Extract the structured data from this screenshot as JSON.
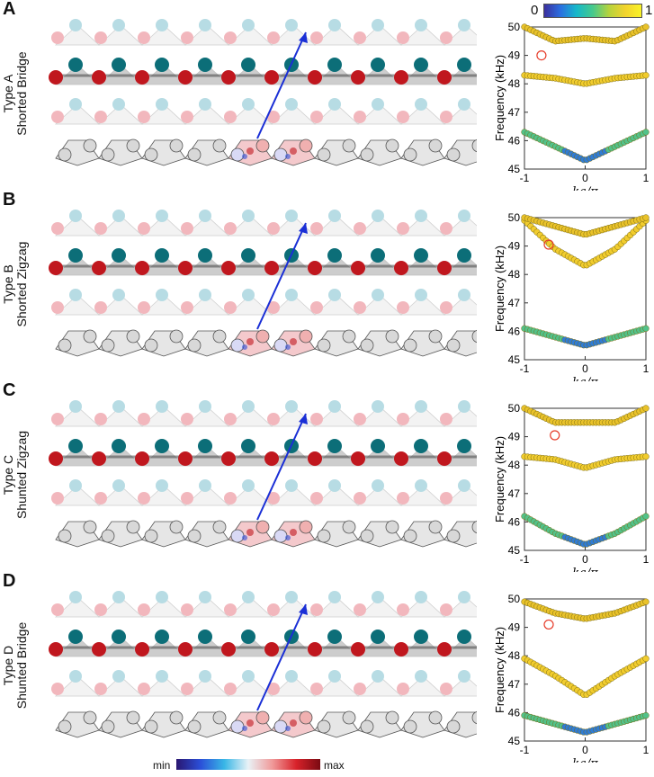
{
  "colorbar_top": {
    "min_label": "0",
    "max_label": "1"
  },
  "field_colorbar": {
    "min_label": "min",
    "max_label": "max"
  },
  "panels": [
    {
      "letter": "A",
      "type": "Type A",
      "name": "Shorted Bridge"
    },
    {
      "letter": "B",
      "type": "Type B",
      "name": "Shorted Zigzag"
    },
    {
      "letter": "C",
      "type": "Type C",
      "name": "Shunted Zigzag"
    },
    {
      "letter": "D",
      "type": "Type D",
      "name": "Shunted Bridge"
    }
  ],
  "colors": {
    "accent_red": "#c0171e",
    "accent_teal": "#0c6e78",
    "light_red": "#f2b7bd",
    "light_blue": "#b7dce4",
    "arrow": "#1a2fd6",
    "marker": "#e63c2a",
    "cell_fill": "#e6e6e6"
  },
  "chart_data": [
    {
      "type": "scatter",
      "panel": "A",
      "ylabel": "Frequency (kHz)",
      "xlabel": "ka/π",
      "xlim": [
        -1,
        1
      ],
      "ylim": [
        45,
        50
      ],
      "xticks": [
        -1,
        0,
        1
      ],
      "yticks": [
        45,
        46,
        47,
        48,
        49,
        50
      ],
      "series": [
        {
          "name": "edge",
          "points": [
            [
              -1,
              48.3
            ],
            [
              -0.5,
              48.2
            ],
            [
              0,
              48.0
            ],
            [
              0.5,
              48.2
            ],
            [
              1,
              48.3
            ]
          ]
        },
        {
          "name": "upper",
          "points": [
            [
              -1,
              50.0
            ],
            [
              -0.5,
              49.5
            ],
            [
              0,
              49.6
            ],
            [
              0.5,
              49.5
            ],
            [
              1,
              50.0
            ]
          ]
        },
        {
          "name": "lower",
          "points": [
            [
              -1,
              46.3
            ],
            [
              -0.5,
              45.8
            ],
            [
              0,
              45.3
            ],
            [
              0.5,
              45.8
            ],
            [
              1,
              46.3
            ]
          ]
        }
      ],
      "highlight": [
        -0.72,
        49.0
      ]
    },
    {
      "type": "scatter",
      "panel": "B",
      "ylabel": "Frequency (kHz)",
      "xlabel": "ka/π",
      "xlim": [
        -1,
        1
      ],
      "ylim": [
        45,
        50
      ],
      "xticks": [
        -1,
        0,
        1
      ],
      "yticks": [
        45,
        46,
        47,
        48,
        49,
        50
      ],
      "series": [
        {
          "name": "edge",
          "points": [
            [
              -1,
              49.9
            ],
            [
              -0.5,
              48.9
            ],
            [
              0,
              48.3
            ],
            [
              0.5,
              48.9
            ],
            [
              1,
              49.9
            ]
          ]
        },
        {
          "name": "upper",
          "points": [
            [
              -1,
              50.0
            ],
            [
              -0.5,
              49.7
            ],
            [
              0,
              49.4
            ],
            [
              0.5,
              49.7
            ],
            [
              1,
              50.0
            ]
          ]
        },
        {
          "name": "lower",
          "points": [
            [
              -1,
              46.1
            ],
            [
              -0.5,
              45.8
            ],
            [
              0,
              45.5
            ],
            [
              0.5,
              45.8
            ],
            [
              1,
              46.1
            ]
          ]
        }
      ],
      "highlight": [
        -0.6,
        49.05
      ]
    },
    {
      "type": "scatter",
      "panel": "C",
      "ylabel": "Frequency (kHz)",
      "xlabel": "ka/π",
      "xlim": [
        -1,
        1
      ],
      "ylim": [
        45,
        50
      ],
      "xticks": [
        -1,
        0,
        1
      ],
      "yticks": [
        45,
        46,
        47,
        48,
        49,
        50
      ],
      "series": [
        {
          "name": "edge",
          "points": [
            [
              -1,
              48.3
            ],
            [
              -0.5,
              48.2
            ],
            [
              0,
              47.9
            ],
            [
              0.5,
              48.2
            ],
            [
              1,
              48.3
            ]
          ]
        },
        {
          "name": "upper",
          "points": [
            [
              -1,
              50.0
            ],
            [
              -0.5,
              49.5
            ],
            [
              0,
              49.5
            ],
            [
              0.5,
              49.5
            ],
            [
              1,
              50.0
            ]
          ]
        },
        {
          "name": "lower",
          "points": [
            [
              -1,
              46.2
            ],
            [
              -0.5,
              45.6
            ],
            [
              0,
              45.2
            ],
            [
              0.5,
              45.6
            ],
            [
              1,
              46.2
            ]
          ]
        }
      ],
      "highlight": [
        -0.5,
        49.05
      ]
    },
    {
      "type": "scatter",
      "panel": "D",
      "ylabel": "Frequency (kHz)",
      "xlabel": "ka/π",
      "xlim": [
        -1,
        1
      ],
      "ylim": [
        45,
        50
      ],
      "xticks": [
        -1,
        0,
        1
      ],
      "yticks": [
        45,
        46,
        47,
        48,
        49,
        50
      ],
      "series": [
        {
          "name": "edge",
          "points": [
            [
              -1,
              47.9
            ],
            [
              -0.5,
              47.3
            ],
            [
              0,
              46.6
            ],
            [
              0.5,
              47.3
            ],
            [
              1,
              47.9
            ]
          ]
        },
        {
          "name": "upper",
          "points": [
            [
              -1,
              49.9
            ],
            [
              -0.5,
              49.5
            ],
            [
              0,
              49.3
            ],
            [
              0.5,
              49.5
            ],
            [
              1,
              49.9
            ]
          ]
        },
        {
          "name": "lower",
          "points": [
            [
              -1,
              45.9
            ],
            [
              -0.5,
              45.6
            ],
            [
              0,
              45.3
            ],
            [
              0.5,
              45.6
            ],
            [
              1,
              45.9
            ]
          ]
        }
      ],
      "highlight": [
        -0.6,
        49.1
      ]
    }
  ]
}
